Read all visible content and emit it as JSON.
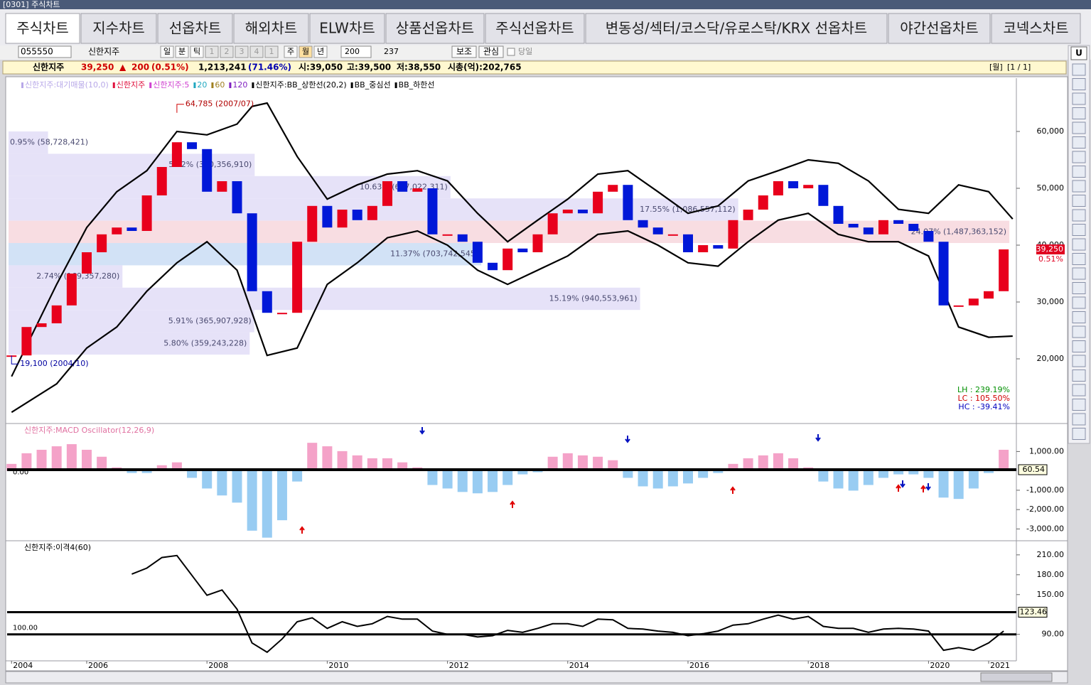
{
  "window_title": "[0301] 주식차트",
  "tabs": [
    "주식차트",
    "지수차트",
    "선옵차트",
    "해외차트",
    "ELW차트",
    "상품선옵차트",
    "주식선옵차트",
    "변동성/섹터/코스닥/유로스탁/KRX 선옵차트",
    "야간선옵차트",
    "코넥스차트"
  ],
  "toolbar": {
    "code": "055550",
    "name": "신한지주",
    "periods": [
      "일",
      "분",
      "틱",
      "1",
      "2",
      "3",
      "4",
      "1",
      "주",
      "월",
      "년"
    ],
    "count": "200",
    "total": "237",
    "buttons": [
      "보조",
      "관심"
    ],
    "checkbox": "당일",
    "side_button": "U"
  },
  "info": {
    "name": "신한지주",
    "price": "39,250",
    "arrow": "▲",
    "change": "200",
    "change_pct": "(0.51%)",
    "volume": "1,213,241",
    "volume_pct": "(71.46%)",
    "open": "시:39,050",
    "high": "고:39,500",
    "low": "저:38,550",
    "cap": "시총(억):202,765",
    "period": "[월]",
    "page": "[1 / 1]"
  },
  "chart_data": [
    {
      "type": "candlestick",
      "legend": [
        {
          "name": "신한지주:대기매물(10,0)",
          "color": "#b8a8e8"
        },
        {
          "name": "신한지주",
          "color": "#e0103c"
        },
        {
          "name": "신한지주:5",
          "color": "#d040d0"
        },
        {
          "name": "20",
          "color": "#20a8c0"
        },
        {
          "name": "60",
          "color": "#a08020"
        },
        {
          "name": "120",
          "color": "#8020c0"
        },
        {
          "name": "신한지주:BB_상한선(20,2)",
          "color": "#000000"
        },
        {
          "name": "BB_중심선",
          "color": "#000000"
        },
        {
          "name": "BB_하한선",
          "color": "#000000"
        }
      ],
      "x": [
        2004.75,
        2005,
        2005.25,
        2005.5,
        2005.75,
        2006,
        2006.25,
        2006.5,
        2006.75,
        2007,
        2007.25,
        2007.5,
        2007.75,
        2008,
        2008.25,
        2008.5,
        2008.75,
        2009,
        2009.25,
        2009.5,
        2009.75,
        2010,
        2010.25,
        2010.5,
        2010.75,
        2011,
        2011.25,
        2011.5,
        2011.75,
        2012,
        2012.25,
        2012.5,
        2012.75,
        2013,
        2013.25,
        2013.5,
        2013.75,
        2014,
        2014.25,
        2014.5,
        2014.75,
        2015,
        2015.25,
        2015.5,
        2015.75,
        2016,
        2016.25,
        2016.5,
        2016.75,
        2017,
        2017.25,
        2017.5,
        2017.75,
        2018,
        2018.25,
        2018.5,
        2018.75,
        2019,
        2019.25,
        2019.5,
        2019.75,
        2020,
        2020.25,
        2020.5,
        2020.75,
        2021,
        2021.25
      ],
      "close": [
        20600,
        25600,
        26250,
        29400,
        35000,
        38750,
        41900,
        43100,
        42500,
        48750,
        53750,
        58100,
        56900,
        49400,
        51250,
        45600,
        31900,
        28100,
        28100,
        40600,
        46900,
        43100,
        46250,
        44400,
        46900,
        51250,
        49400,
        50000,
        41900,
        41900,
        40600,
        36900,
        35600,
        39400,
        38750,
        41900,
        45600,
        46250,
        45600,
        49400,
        50600,
        44400,
        43100,
        41900,
        41900,
        38750,
        40000,
        39400,
        44400,
        46250,
        48750,
        51250,
        50000,
        50600,
        46900,
        43750,
        43100,
        41900,
        44400,
        43750,
        42500,
        40600,
        29400,
        29400,
        30600,
        31900,
        39250
      ],
      "up_color": "#e8001c",
      "down_color": "#0018d8",
      "series": [
        {
          "name": "신한지주:BB_상한선(20,2)",
          "color": "#000000",
          "x": [
            2004.75,
            2005.5,
            2006,
            2006.5,
            2007,
            2007.5,
            2008,
            2008.5,
            2008.75,
            2009,
            2009.5,
            2010,
            2010.5,
            2011,
            2011.5,
            2012,
            2012.5,
            2013,
            2013.5,
            2014,
            2014.5,
            2015,
            2015.5,
            2016,
            2016.5,
            2017,
            2017.5,
            2018,
            2018.5,
            2019,
            2019.5,
            2020,
            2020.5,
            2021,
            2021.4
          ],
          "values": [
            16900,
            33100,
            43100,
            49400,
            53100,
            60000,
            59400,
            61300,
            64400,
            65000,
            55600,
            48100,
            50600,
            52500,
            53100,
            51300,
            45600,
            40600,
            44400,
            48100,
            52500,
            53100,
            49400,
            45600,
            46900,
            51300,
            53100,
            55000,
            54400,
            51300,
            46300,
            45600,
            50600,
            49400,
            44600
          ]
        },
        {
          "name": "BB_하한선",
          "color": "#000000",
          "x": [
            2004.75,
            2005.5,
            2006,
            2006.5,
            2007,
            2007.5,
            2008,
            2008.5,
            2008.75,
            2009,
            2009.5,
            2010,
            2010.5,
            2011,
            2011.5,
            2012,
            2012.5,
            2013,
            2013.5,
            2014,
            2014.5,
            2015,
            2015.5,
            2016,
            2016.5,
            2017,
            2017.5,
            2018,
            2018.5,
            2019,
            2019.5,
            2020,
            2020.5,
            2021,
            2021.4
          ],
          "values": [
            10600,
            15600,
            21900,
            25600,
            31900,
            36900,
            40600,
            35600,
            28100,
            20600,
            21900,
            33100,
            36900,
            41300,
            42500,
            40000,
            35600,
            33100,
            35600,
            38100,
            41900,
            42500,
            40000,
            36900,
            36300,
            40600,
            44400,
            45600,
            41900,
            40600,
            40600,
            38100,
            25600,
            23800,
            24000
          ]
        }
      ],
      "bands": [
        {
          "label": "0.95% (58,728,421)",
          "pct": 0.95,
          "low": 56075,
          "high": 60000,
          "color": "#e6e2f8"
        },
        {
          "label": "5.92% (360,356,910)",
          "pct": 5.92,
          "low": 52150,
          "high": 56075,
          "color": "#e6e2f8"
        },
        {
          "label": "10.63% (647,022,311)",
          "pct": 10.63,
          "low": 48225,
          "high": 52150,
          "color": "#e6e2f8"
        },
        {
          "label": "17.55% (1,086,557,112)",
          "pct": 17.55,
          "low": 44300,
          "high": 48225,
          "color": "#e6e2f8"
        },
        {
          "label": "24.07% (1,487,363,152)",
          "pct": 24.07,
          "low": 40375,
          "high": 44300,
          "color": "#f8dde2"
        },
        {
          "label": "11.37% (703,742,545)",
          "pct": 11.37,
          "low": 36450,
          "high": 40375,
          "color": "#d2e2f6"
        },
        {
          "label": "2.74% (169,357,280)",
          "pct": 2.74,
          "low": 32525,
          "high": 36450,
          "color": "#e6e2f8"
        },
        {
          "label": "15.19% (940,553,961)",
          "pct": 15.19,
          "low": 28600,
          "high": 32525,
          "color": "#e6e2f8"
        },
        {
          "label": "5.91% (365,907,928)",
          "pct": 5.91,
          "low": 24675,
          "high": 28600,
          "color": "#e6e2f8"
        },
        {
          "label": "5.80% (359,243,228)",
          "pct": 5.8,
          "low": 20750,
          "high": 24675,
          "color": "#e6e2f8"
        }
      ],
      "high_mark": {
        "x": 2007.5,
        "value": 64785,
        "label": "64,785 (2007/07)"
      },
      "low_mark": {
        "x": 2004.75,
        "value": 19100,
        "label": "19,100 (2004/10)"
      },
      "last_price_label": "39,250",
      "last_change_label": "0.51%",
      "stats": [
        "LH : 239.19%",
        "LC : 105.50%",
        "HC : -39.41%"
      ],
      "ylim": [
        9125,
        69125
      ],
      "yticks": [
        {
          "value": 20000,
          "label": "20,000"
        },
        {
          "value": 30000,
          "label": "30,000"
        },
        {
          "value": 40000,
          "label": "40,000"
        },
        {
          "value": 50000,
          "label": "50,000"
        },
        {
          "value": 60000,
          "label": "60,000"
        }
      ]
    },
    {
      "type": "bar",
      "title": "신한지주:MACD Oscillator(12,26,9)",
      "values": [
        360,
        910,
        1090,
        1270,
        1380,
        1090,
        730,
        180,
        -110,
        -110,
        290,
        440,
        -360,
        -910,
        -1270,
        -1640,
        -3090,
        -3450,
        -2550,
        -550,
        1450,
        1270,
        1020,
        800,
        650,
        650,
        440,
        180,
        -730,
        -910,
        -1090,
        -1160,
        -1090,
        -730,
        -180,
        -70,
        730,
        910,
        800,
        730,
        550,
        -360,
        -800,
        -910,
        -800,
        -650,
        -360,
        -110,
        360,
        650,
        800,
        910,
        650,
        180,
        -550,
        -910,
        -1020,
        -730,
        -360,
        -180,
        -180,
        -360,
        -1380,
        -1450,
        -910,
        -110,
        1090
      ],
      "pos_color": "#f4a2c8",
      "neg_color": "#98ccf2",
      "hlines": [
        60.54
      ],
      "ylim": [
        -3500,
        2300
      ],
      "yticks": [
        {
          "value": 1000,
          "label": "1,000.00"
        },
        {
          "value": -1000,
          "label": "-1,000.00"
        },
        {
          "value": -2000,
          "label": "-2,000.00"
        },
        {
          "value": -3000,
          "label": "-3,000.00"
        }
      ],
      "left_ticks": [
        {
          "value": 0,
          "label": "0.00"
        }
      ]
    },
    {
      "type": "line",
      "title": "신한지주:이격4(60)",
      "values": [
        null,
        null,
        null,
        null,
        null,
        null,
        null,
        null,
        181,
        190,
        206,
        209,
        179,
        149,
        157,
        128,
        77,
        63,
        83,
        109,
        115,
        99,
        109,
        102,
        106,
        117,
        113,
        113,
        95,
        90,
        90,
        86,
        88,
        96,
        93,
        99,
        106,
        106,
        102,
        113,
        112,
        99,
        98,
        95,
        93,
        88,
        91,
        95,
        104,
        106,
        113,
        119,
        113,
        117,
        102,
        99,
        99,
        93,
        98,
        99,
        98,
        95,
        66,
        70,
        66,
        77,
        95
      ],
      "color": "#000000",
      "hlines": [
        123.46,
        90
      ],
      "ylim": [
        50,
        227
      ],
      "yticks": [
        {
          "value": 210,
          "label": "210.00"
        },
        {
          "value": 180,
          "label": "180.00"
        },
        {
          "value": 150,
          "label": "150.00"
        },
        {
          "value": 90,
          "label": "90.00"
        }
      ],
      "left_ticks": [
        {
          "value": 100,
          "label": "100.00"
        }
      ],
      "xticks": [
        {
          "value": 2004.75,
          "label": "2004"
        },
        2006,
        2008,
        2010,
        2012,
        2014,
        2016,
        2018,
        2020,
        2021
      ]
    }
  ]
}
